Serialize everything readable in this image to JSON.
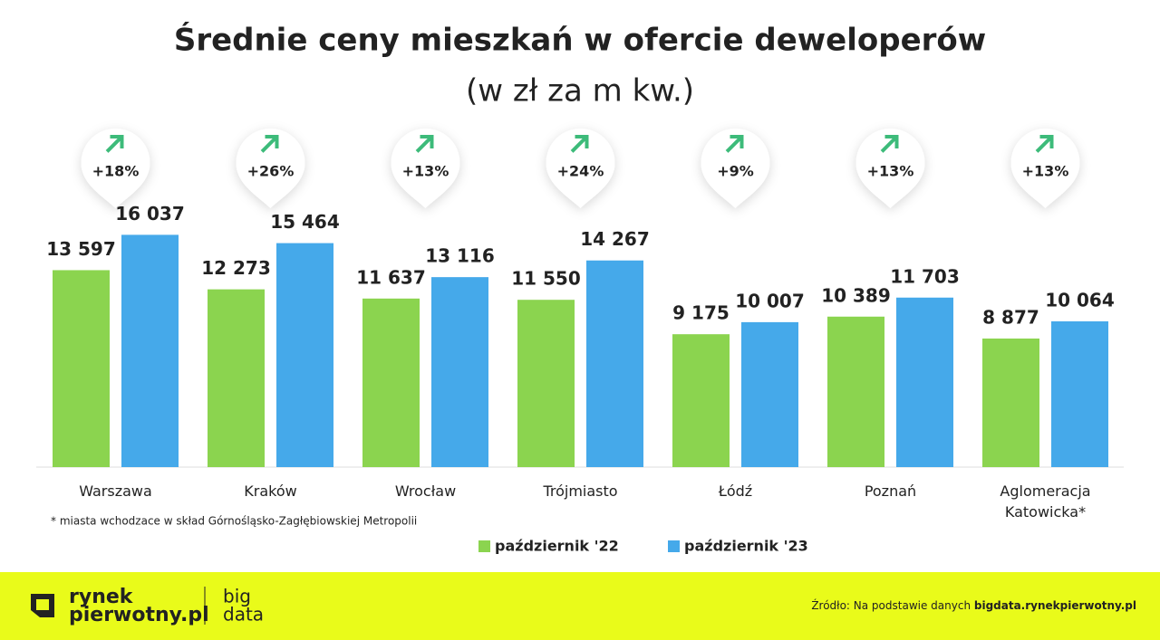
{
  "chart_data": {
    "type": "bar",
    "title": "Średnie ceny mieszkań w ofercie deweloperów",
    "subtitle": "(w zł za m kw.)",
    "categories": [
      "Warszawa",
      "Kraków",
      "Wrocław",
      "Trójmiasto",
      "Łódź",
      "Poznań",
      "Aglomeracja Katowicka*"
    ],
    "series": [
      {
        "name": "październik '22",
        "color": "#8bd44f",
        "values": [
          13597,
          12273,
          11637,
          11550,
          9175,
          10389,
          8877
        ],
        "value_labels": [
          "13 597",
          "12 273",
          "11 637",
          "11 550",
          "9 175",
          "10 389",
          "8 877"
        ]
      },
      {
        "name": "październik '23",
        "color": "#45a9ea",
        "values": [
          16037,
          15464,
          13116,
          14267,
          10007,
          11703,
          10064
        ],
        "value_labels": [
          "16 037",
          "15 464",
          "13 116",
          "14 267",
          "10 007",
          "11 703",
          "10 064"
        ]
      }
    ],
    "annotations": [
      "+18%",
      "+26%",
      "+13%",
      "+24%",
      "+9%",
      "+13%",
      "+13%"
    ],
    "annotation_color": "#3dbb7a",
    "ylim": [
      0,
      20000
    ],
    "footnote": "* miasta wchodzace w skład Górnośląsko-Zagłębiowskiej Metropolii"
  },
  "footer": {
    "logo_line1": "rynek",
    "logo_line2": "pierwotny.pl",
    "brand_line1": "big",
    "brand_line2": "data",
    "source": "Źródło: Na podstawie danych ",
    "source_link": "bigdata.rynekpierwotny.pl"
  }
}
